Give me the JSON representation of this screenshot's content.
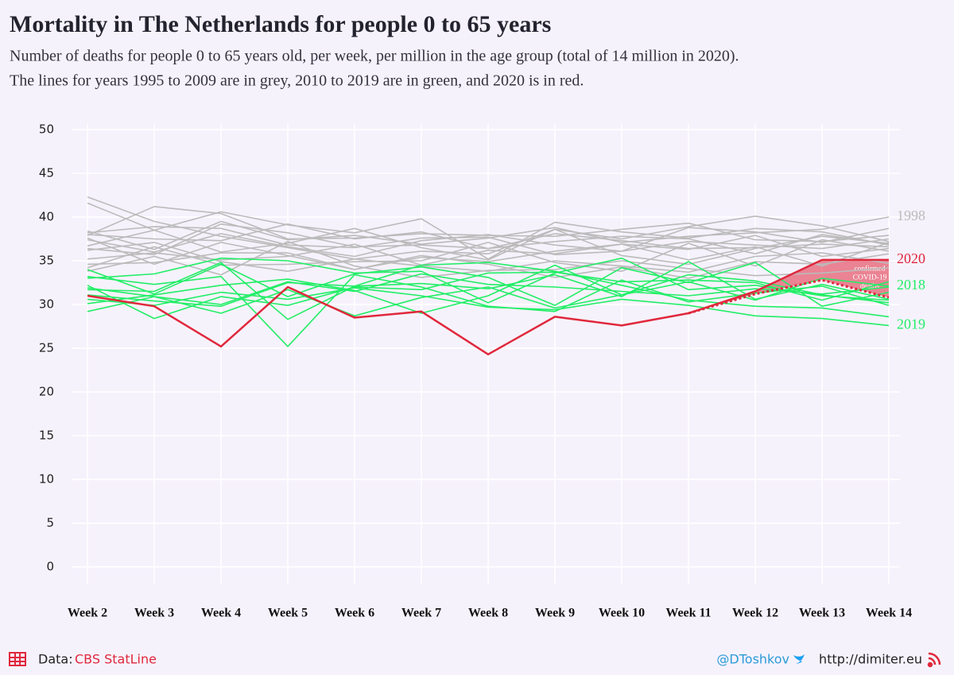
{
  "chart_data": {
    "type": "line",
    "title": "Mortality in The Netherlands for people 0 to 65 years",
    "subtitle": [
      "Number of deaths for people 0 to 65 years old, per week, per million in the age group (total of 14 million in 2020).",
      "The lines for years 1995 to 2009 are in grey, 2010 to 2019 are in green, and 2020 is in red."
    ],
    "categories": [
      "Week 2",
      "Week 3",
      "Week 4",
      "Week 5",
      "Week 6",
      "Week 7",
      "Week 8",
      "Week 9",
      "Week 10",
      "Week 11",
      "Week 12",
      "Week 13",
      "Week 14"
    ],
    "ylim": [
      -2,
      52
    ],
    "yticks": [
      0,
      5,
      10,
      15,
      20,
      25,
      30,
      35,
      40,
      45,
      50
    ],
    "grid": true,
    "annotation": [
      "confirmed",
      "COVID-19",
      "deaths"
    ],
    "series": [
      {
        "color": "#bbbbbb",
        "values": [
          42.3,
          39.5,
          37.8,
          36.5,
          35.2,
          36.1,
          35.8,
          38.6,
          37.5,
          38.9,
          40.1,
          39.0,
          37.2
        ]
      },
      {
        "name": "1998",
        "color": "#bbbbbb",
        "values": [
          38.4,
          36.3,
          39.5,
          37.4,
          37.9,
          36.9,
          37.6,
          38.8,
          37.1,
          37.8,
          38.2,
          38.6,
          40.0
        ]
      },
      {
        "color": "#bbbbbb",
        "values": [
          41.6,
          38.5,
          40.6,
          39.1,
          38.2,
          39.8,
          35.2,
          39.4,
          38.3,
          37.6,
          38.7,
          38.3,
          36.8
        ]
      },
      {
        "color": "#bbbbbb",
        "values": [
          37.9,
          41.2,
          40.4,
          37.5,
          37.6,
          38.1,
          37.9,
          37.8,
          38.6,
          39.3,
          37.4,
          37.2,
          37.9
        ]
      },
      {
        "color": "#bbbbbb",
        "values": [
          36.4,
          35.7,
          39.2,
          38.2,
          36.6,
          36.8,
          36.4,
          38.1,
          37.3,
          36.4,
          36.5,
          36.9,
          36.6
        ]
      },
      {
        "color": "#bbbbbb",
        "values": [
          37.4,
          36.0,
          38.1,
          36.6,
          35.5,
          37.3,
          38.0,
          36.8,
          36.1,
          37.2,
          36.8,
          36.4,
          37.5
        ]
      },
      {
        "color": "#bbbbbb",
        "values": [
          38.0,
          37.5,
          37.3,
          39.2,
          37.5,
          38.3,
          36.4,
          37.2,
          37.8,
          37.5,
          35.8,
          38.0,
          36.9
        ]
      },
      {
        "color": "#bbbbbb",
        "values": [
          36.7,
          38.5,
          36.0,
          37.0,
          38.7,
          36.5,
          35.1,
          38.6,
          35.6,
          34.6,
          36.4,
          37.8,
          37.0
        ]
      },
      {
        "color": "#bbbbbb",
        "values": [
          35.2,
          35.9,
          35.1,
          35.5,
          36.9,
          34.5,
          36.2,
          35.8,
          36.9,
          36.3,
          37.9,
          35.5,
          36.4
        ]
      },
      {
        "color": "#bbbbbb",
        "values": [
          34.2,
          36.6,
          34.5,
          34.6,
          34.9,
          35.0,
          37.1,
          34.8,
          33.8,
          37.0,
          34.4,
          37.4,
          36.1
        ]
      },
      {
        "color": "#bbbbbb",
        "values": [
          37.6,
          34.6,
          37.1,
          35.6,
          34.0,
          35.4,
          34.9,
          36.1,
          36.9,
          35.1,
          36.6,
          34.4,
          37.1
        ]
      },
      {
        "color": "#bbbbbb",
        "values": [
          38.2,
          38.9,
          38.7,
          36.8,
          36.5,
          37.6,
          37.7,
          35.7,
          36.1,
          38.8,
          38.3,
          37.1,
          38.7
        ]
      },
      {
        "color": "#bbbbbb",
        "values": [
          36.2,
          37.1,
          34.9,
          33.8,
          35.2,
          34.4,
          33.8,
          35.0,
          34.4,
          33.7,
          35.5,
          35.9,
          34.7
        ]
      },
      {
        "color": "#bbbbbb",
        "values": [
          34.6,
          34.8,
          35.9,
          35.9,
          34.0,
          35.6,
          34.6,
          33.1,
          34.3,
          33.0,
          34.9,
          34.6,
          35.8
        ]
      },
      {
        "color": "#bbbbbb",
        "values": [
          33.8,
          35.5,
          33.4,
          37.2,
          34.4,
          33.1,
          33.9,
          34.0,
          35.0,
          34.1,
          33.3,
          33.6,
          34.2
        ]
      },
      {
        "color": "#22ee66",
        "values": [
          33.0,
          33.5,
          35.3,
          35.0,
          33.6,
          33.8,
          30.2,
          33.6,
          35.3,
          31.7,
          32.2,
          31.0,
          30.5
        ]
      },
      {
        "color": "#22ee66",
        "values": [
          34.0,
          31.2,
          34.6,
          30.9,
          33.5,
          34.3,
          33.1,
          29.9,
          34.2,
          32.5,
          34.8,
          29.8,
          31.4
        ]
      },
      {
        "color": "#22ee66",
        "values": [
          29.2,
          30.9,
          30.0,
          32.6,
          31.5,
          33.5,
          32.3,
          32.0,
          31.5,
          31.0,
          31.8,
          31.2,
          32.0
        ]
      },
      {
        "color": "#22ee66",
        "values": [
          32.2,
          28.4,
          30.9,
          29.9,
          32.0,
          31.7,
          33.6,
          33.7,
          32.6,
          32.8,
          32.5,
          30.5,
          32.6
        ]
      },
      {
        "color": "#22ee66",
        "values": [
          31.7,
          31.5,
          34.8,
          28.3,
          32.1,
          32.4,
          31.8,
          33.4,
          30.9,
          34.9,
          30.6,
          32.3,
          30.6
        ]
      },
      {
        "color": "#22ee66",
        "values": [
          33.2,
          32.3,
          33.2,
          25.2,
          33.4,
          32.0,
          29.8,
          29.2,
          32.8,
          30.3,
          31.3,
          32.1,
          29.9
        ]
      },
      {
        "color": "#22ee66",
        "values": [
          30.1,
          31.1,
          32.2,
          32.9,
          31.6,
          29.0,
          31.0,
          34.5,
          31.1,
          33.4,
          32.7,
          31.1,
          30.2
        ]
      },
      {
        "name": "2018",
        "color": "#22ee66",
        "values": [
          31.9,
          30.9,
          29.0,
          31.7,
          28.7,
          30.8,
          32.0,
          29.6,
          31.1,
          32.6,
          30.5,
          33.0,
          32.1
        ]
      },
      {
        "color": "#22ee66",
        "values": [
          31.1,
          30.4,
          29.8,
          32.5,
          32.1,
          34.5,
          34.8,
          33.8,
          32.2,
          30.5,
          29.8,
          29.6,
          28.6
        ]
      },
      {
        "name": "2019",
        "color": "#22ee66",
        "values": [
          30.6,
          29.9,
          31.4,
          30.6,
          31.9,
          31.0,
          29.7,
          29.4,
          30.6,
          29.9,
          28.7,
          28.4,
          27.6
        ]
      },
      {
        "color": "#e0283c",
        "dashed": true,
        "values": [
          null,
          null,
          null,
          null,
          null,
          null,
          null,
          null,
          null,
          29.0,
          31.2,
          32.8,
          30.8
        ]
      },
      {
        "name": "2020",
        "color": "#e0283c",
        "values": [
          31.0,
          29.8,
          25.2,
          32.0,
          28.5,
          29.2,
          24.3,
          28.6,
          27.6,
          29.0,
          31.5,
          35.1,
          35.1
        ]
      }
    ]
  },
  "footer": {
    "source_label": "Data:",
    "source": "CBS StatLine",
    "twitter": "@DToshkov",
    "website": "http://dimiter.eu"
  }
}
